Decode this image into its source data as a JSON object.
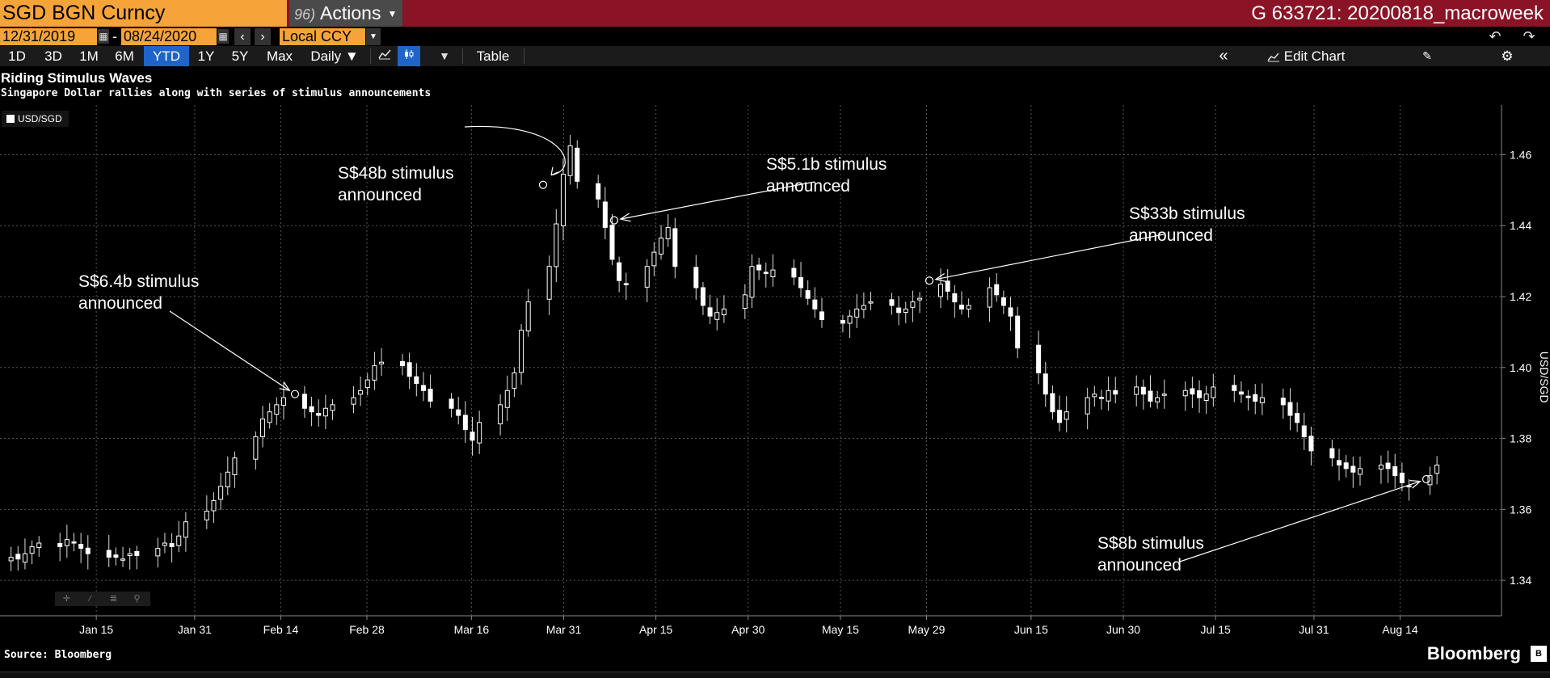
{
  "header": {
    "ticker": "SGD BGN Curncy",
    "actions_icon": "96)",
    "actions_label": "Actions",
    "right_title": "G 633721: 20200818_macroweek"
  },
  "controls": {
    "start_date": "12/31/2019",
    "date_sep": "-",
    "end_date": "08/24/2020",
    "currency": "Local CCY",
    "ranges": [
      "1D",
      "3D",
      "1M",
      "6M",
      "YTD",
      "1Y",
      "5Y",
      "Max"
    ],
    "active_range": "YTD",
    "frequency": "Daily ▼",
    "table_label": "Table",
    "edit_chart_label": "Edit Chart"
  },
  "chart_data": {
    "type": "candlestick",
    "title": "Riding Stimulus Waves",
    "subtitle": "Singapore Dollar rallies along with series of stimulus announcements",
    "series_name": "USD/SGD",
    "ylabel": "USD/SGD",
    "ylim": [
      1.33,
      1.474
    ],
    "yticks": [
      1.34,
      1.36,
      1.38,
      1.4,
      1.42,
      1.44,
      1.46
    ],
    "ytick_labels": [
      "1.34",
      "1.36",
      "1.38",
      "1.40",
      "1.42",
      "1.44",
      "1.46"
    ],
    "xticks": [
      {
        "label": "Jan 15",
        "day": 15
      },
      {
        "label": "Jan 31",
        "day": 31
      },
      {
        "label": "Feb 14",
        "day": 45
      },
      {
        "label": "Feb 28",
        "day": 59
      },
      {
        "label": "Mar 16",
        "day": 76
      },
      {
        "label": "Mar 31",
        "day": 91
      },
      {
        "label": "Apr 15",
        "day": 106
      },
      {
        "label": "Apr 30",
        "day": 121
      },
      {
        "label": "May 15",
        "day": 136
      },
      {
        "label": "May 29",
        "day": 150
      },
      {
        "label": "Jun 15",
        "day": 167
      },
      {
        "label": "Jun 30",
        "day": 182
      },
      {
        "label": "Jul 15",
        "day": 197
      },
      {
        "label": "Jul 31",
        "day": 213
      },
      {
        "label": "Aug 14",
        "day": 227
      }
    ],
    "year_label": "2020",
    "grid": true,
    "closes": [
      1.3465,
      1.346,
      1.3475,
      1.3495,
      1.3505,
      1.3495,
      1.3515,
      1.3505,
      1.349,
      1.3475,
      1.3465,
      1.3465,
      1.346,
      1.3475,
      1.347,
      1.349,
      1.3505,
      1.3495,
      1.3525,
      1.3565,
      1.3595,
      1.3625,
      1.3665,
      1.3705,
      1.3745,
      1.3805,
      1.3855,
      1.3875,
      1.3895,
      1.3915,
      1.3885,
      1.3875,
      1.3865,
      1.3885,
      1.3895,
      1.3915,
      1.3935,
      1.3965,
      1.4005,
      1.4015,
      1.4005,
      1.3975,
      1.3955,
      1.3935,
      1.3905,
      1.3885,
      1.3865,
      1.3825,
      1.3795,
      1.3845,
      1.3895,
      1.3935,
      1.3985,
      1.4105,
      1.4185,
      1.4285,
      1.4405,
      1.4545,
      1.4625,
      1.4525,
      1.4475,
      1.4395,
      1.4305,
      1.4245,
      1.4235,
      1.4285,
      1.4325,
      1.4365,
      1.4395,
      1.4285,
      1.4225,
      1.4175,
      1.4145,
      1.4155,
      1.4165,
      1.4205,
      1.4285,
      1.4275,
      1.4265,
      1.4275,
      1.4255,
      1.4225,
      1.4195,
      1.4165,
      1.4135,
      1.4125,
      1.4145,
      1.4165,
      1.4175,
      1.4185,
      1.4175,
      1.4155,
      1.4165,
      1.4185,
      1.4195,
      1.4235,
      1.4215,
      1.4185,
      1.4165,
      1.4175,
      1.4225,
      1.4205,
      1.4175,
      1.4145,
      1.4055,
      1.3985,
      1.3925,
      1.3875,
      1.3845,
      1.3875,
      1.3915,
      1.3925,
      1.3915,
      1.3935,
      1.3925,
      1.3945,
      1.3925,
      1.3905,
      1.3915,
      1.3925,
      1.3935,
      1.3925,
      1.3915,
      1.3925,
      1.3945,
      1.3935,
      1.3925,
      1.3915,
      1.3905,
      1.3915,
      1.3895,
      1.3865,
      1.3845,
      1.3805,
      1.3765,
      1.3745,
      1.3725,
      1.3715,
      1.3705,
      1.3715,
      1.3725,
      1.3715,
      1.3695,
      1.3675,
      1.3665,
      1.3695,
      1.3725
    ],
    "annotations": [
      {
        "line1": "S$6.4b stimulus",
        "line2": "announced",
        "day": 50,
        "value": 1.3925
      },
      {
        "line1": "S$48b stimulus",
        "line2": "announced",
        "day": 85,
        "value": 1.4515
      },
      {
        "line1": "S$5.1b stimulus",
        "line2": "announced",
        "day": 97,
        "value": 1.4415
      },
      {
        "line1": "S$33b stimulus",
        "line2": "announced",
        "day": 146,
        "value": 1.4245
      },
      {
        "line1": "S$8b stimulus",
        "line2": "announced",
        "day": 230,
        "value": 1.3685
      }
    ]
  },
  "footer": {
    "source": "Source: Bloomberg",
    "brand": "Bloomberg"
  },
  "colors": {
    "accent_orange": "#f6a43a",
    "header_red": "#8a1325",
    "active_blue": "#1f64c8"
  },
  "icons": [
    "calendar-icon",
    "chevron-left-icon",
    "chevron-right-icon",
    "undo-icon",
    "redo-icon",
    "line-chart-icon",
    "candle-chart-icon",
    "collapse-icon",
    "edit-chart-icon",
    "annotate-icon",
    "gear-icon",
    "crosshair-icon",
    "draw-icon",
    "menu-icon",
    "zoom-icon"
  ]
}
